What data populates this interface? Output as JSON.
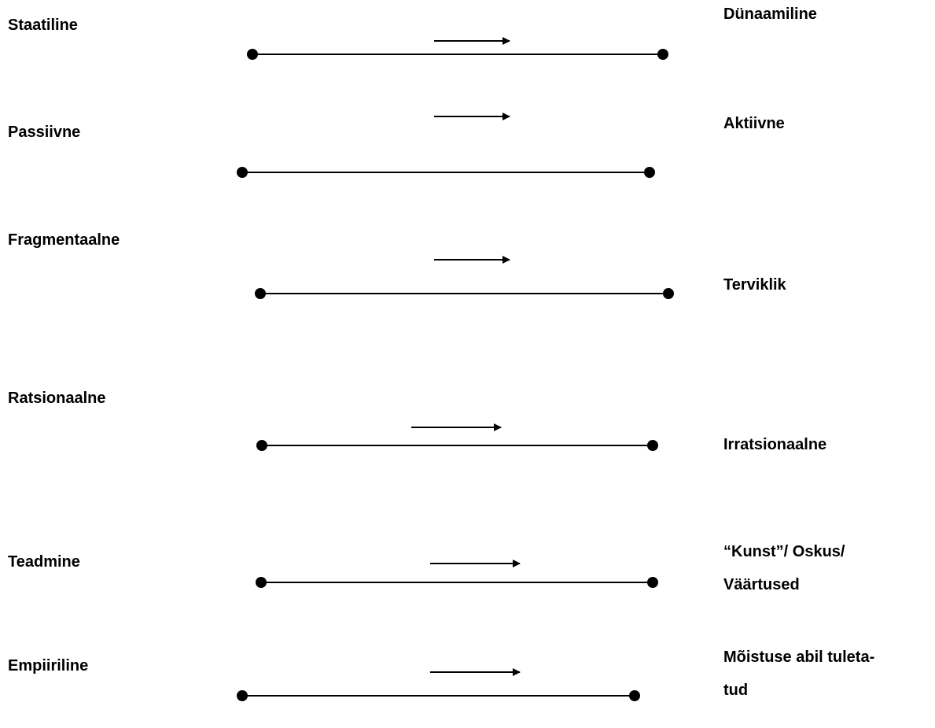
{
  "pairs": [
    {
      "left": "Staatiline",
      "right": [
        "Dünaamiline"
      ]
    },
    {
      "left": "Passiivne",
      "right": [
        "Aktiivne"
      ]
    },
    {
      "left": "Fragmentaalne",
      "right": [
        "Terviklik"
      ]
    },
    {
      "left": "Ratsionaalne",
      "right": [
        "Irratsionaalne"
      ]
    },
    {
      "left": "Teadmine",
      "right": [
        "“Kunst”/ Oskus/",
        "Väärtused"
      ]
    },
    {
      "left": "Empiiriline",
      "right": [
        "Mõistuse abil tuleta-",
        "tud"
      ]
    }
  ],
  "colors": {
    "stroke": "#000000",
    "background": "#ffffff"
  }
}
